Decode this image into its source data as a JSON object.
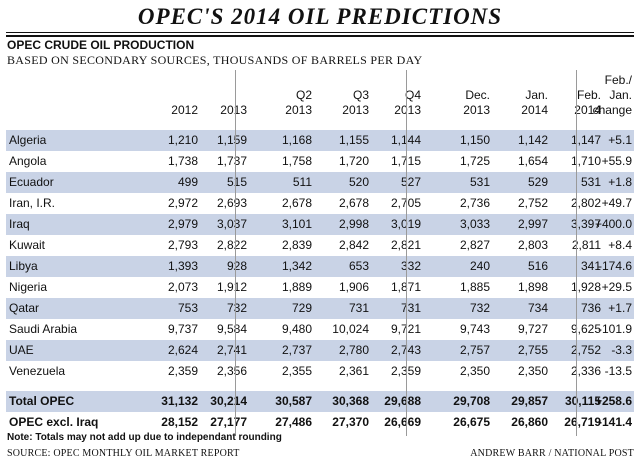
{
  "title": "OPEC'S 2014 OIL PREDICTIONS",
  "subtitle": "OPEC CRUDE OIL PRODUCTION",
  "subtitle2": "BASED ON SECONDARY SOURCES, THOUSANDS OF BARRELS PER DAY",
  "note": "Note: Totals may not add up due to independant rounding",
  "source": "SOURCE: OPEC MONTHLY OIL MARKET REPORT",
  "credit": "ANDREW BARR / NATIONAL POST",
  "chart_data": {
    "type": "table",
    "columns": [
      "2012",
      "2013",
      "Q2\n2013",
      "Q3\n2013",
      "Q4\n2013",
      "Dec.\n2013",
      "Jan.\n2014",
      "Feb.\n2014",
      "Feb./\nJan.\nchange"
    ],
    "rows": [
      {
        "name": "Algeria",
        "values": [
          "1,210",
          "1,159",
          "1,168",
          "1,155",
          "1,144",
          "1,150",
          "1,142",
          "1,147",
          "+5.1"
        ]
      },
      {
        "name": "Angola",
        "values": [
          "1,738",
          "1,737",
          "1,758",
          "1,720",
          "1,715",
          "1,725",
          "1,654",
          "1,710",
          "+55.9"
        ]
      },
      {
        "name": "Ecuador",
        "values": [
          "499",
          "515",
          "511",
          "520",
          "527",
          "531",
          "529",
          "531",
          "+1.8"
        ]
      },
      {
        "name": "Iran, I.R.",
        "values": [
          "2,972",
          "2,693",
          "2,678",
          "2,678",
          "2,705",
          "2,736",
          "2,752",
          "2,802",
          "+49.7"
        ]
      },
      {
        "name": "Iraq",
        "values": [
          "2,979",
          "3,037",
          "3,101",
          "2,998",
          "3,019",
          "3,033",
          "2,997",
          "3,397",
          "+400.0"
        ]
      },
      {
        "name": "Kuwait",
        "values": [
          "2,793",
          "2,822",
          "2,839",
          "2,842",
          "2,821",
          "2,827",
          "2,803",
          "2,811",
          "+8.4"
        ]
      },
      {
        "name": "Libya",
        "values": [
          "1,393",
          "928",
          "1,342",
          "653",
          "332",
          "240",
          "516",
          "341",
          "-174.6"
        ]
      },
      {
        "name": "Nigeria",
        "values": [
          "2,073",
          "1,912",
          "1,889",
          "1,906",
          "1,871",
          "1,885",
          "1,898",
          "1,928",
          "+29.5"
        ]
      },
      {
        "name": "Qatar",
        "values": [
          "753",
          "732",
          "729",
          "731",
          "731",
          "732",
          "734",
          "736",
          "+1.7"
        ]
      },
      {
        "name": "Saudi Arabia",
        "values": [
          "9,737",
          "9,584",
          "9,480",
          "10,024",
          "9,721",
          "9,743",
          "9,727",
          "9,625",
          "-101.9"
        ]
      },
      {
        "name": "UAE",
        "values": [
          "2,624",
          "2,741",
          "2,737",
          "2,780",
          "2,743",
          "2,757",
          "2,755",
          "2,752",
          "-3.3"
        ]
      },
      {
        "name": "Venezuela",
        "values": [
          "2,359",
          "2,356",
          "2,355",
          "2,361",
          "2,359",
          "2,350",
          "2,350",
          "2,336",
          "-13.5"
        ]
      }
    ],
    "totals": [
      {
        "name": "Total OPEC",
        "values": [
          "31,132",
          "30,214",
          "30,587",
          "30,368",
          "29,688",
          "29,708",
          "29,857",
          "30,115",
          "+258.6"
        ]
      },
      {
        "name": "OPEC excl. Iraq",
        "values": [
          "28,152",
          "27,177",
          "27,486",
          "27,370",
          "26,669",
          "26,675",
          "26,860",
          "26,719",
          "-141.4"
        ]
      }
    ],
    "colors": {
      "row_shade": "#c9d3e6",
      "text": "#111111"
    }
  }
}
